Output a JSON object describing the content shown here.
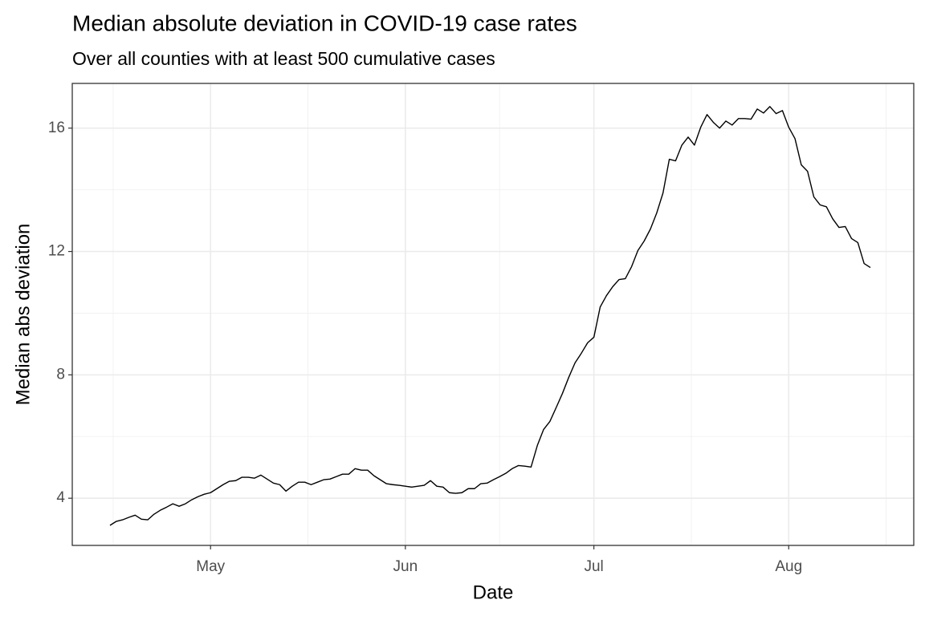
{
  "chart_data": {
    "type": "line",
    "title": "Median absolute deviation in COVID-19 case rates",
    "subtitle": "Over all counties with at least 500 cumulative cases",
    "x_label": "Date",
    "y_label": "Median abs deviation",
    "categories": [
      null,
      null,
      null,
      null,
      null,
      null,
      null,
      null,
      null,
      null,
      null,
      null,
      null,
      null,
      null,
      null,
      "May",
      null,
      null,
      null,
      null,
      null,
      null,
      null,
      null,
      null,
      null,
      null,
      null,
      null,
      null,
      null,
      null,
      null,
      null,
      null,
      null,
      null,
      null,
      null,
      null,
      null,
      null,
      null,
      null,
      null,
      null,
      "Jun",
      null,
      null,
      null,
      null,
      null,
      null,
      null,
      null,
      null,
      null,
      null,
      null,
      null,
      null,
      null,
      null,
      null,
      null,
      null,
      null,
      null,
      null,
      null,
      null,
      null,
      null,
      null,
      null,
      null,
      "Jul",
      null,
      null,
      null,
      null,
      null,
      null,
      null,
      null,
      null,
      null,
      null,
      null,
      null,
      null,
      null,
      null,
      null,
      null,
      null,
      null,
      null,
      null,
      null,
      null,
      null,
      null,
      null,
      null,
      null,
      null,
      "Aug",
      null,
      null,
      null,
      null,
      null,
      null,
      null,
      null,
      null,
      null,
      null,
      null,
      null
    ],
    "values": [
      3.12,
      3.25,
      3.3,
      3.38,
      3.45,
      3.32,
      3.3,
      3.48,
      3.61,
      3.71,
      3.82,
      3.74,
      3.82,
      3.95,
      4.05,
      4.13,
      4.18,
      4.31,
      4.44,
      4.55,
      4.57,
      4.68,
      4.68,
      4.65,
      4.75,
      4.62,
      4.49,
      4.44,
      4.23,
      4.39,
      4.52,
      4.52,
      4.44,
      4.52,
      4.6,
      4.62,
      4.7,
      4.78,
      4.78,
      4.96,
      4.91,
      4.91,
      4.73,
      4.6,
      4.47,
      4.44,
      4.42,
      4.39,
      4.36,
      4.39,
      4.42,
      4.57,
      4.39,
      4.36,
      4.18,
      4.16,
      4.18,
      4.31,
      4.31,
      4.47,
      4.49,
      4.6,
      4.7,
      4.81,
      4.96,
      5.06,
      5.04,
      5.01,
      5.71,
      6.23,
      6.49,
      6.94,
      7.4,
      7.92,
      8.39,
      8.7,
      9.04,
      9.22,
      10.2,
      10.57,
      10.86,
      11.09,
      11.12,
      11.51,
      12.03,
      12.34,
      12.73,
      13.25,
      13.9,
      14.99,
      14.94,
      15.45,
      15.71,
      15.45,
      16.03,
      16.44,
      16.19,
      16.0,
      16.23,
      16.1,
      16.31,
      16.31,
      16.29,
      16.62,
      16.49,
      16.7,
      16.47,
      16.57,
      16.03,
      15.66,
      14.81,
      14.6,
      13.77,
      13.51,
      13.45,
      13.06,
      12.78,
      12.81,
      12.42,
      12.29,
      11.61,
      11.48
    ],
    "color": "#000000",
    "ylim": [
      2.47,
      17.45
    ],
    "yticks": [
      4,
      8,
      12,
      16
    ],
    "grid": true
  }
}
